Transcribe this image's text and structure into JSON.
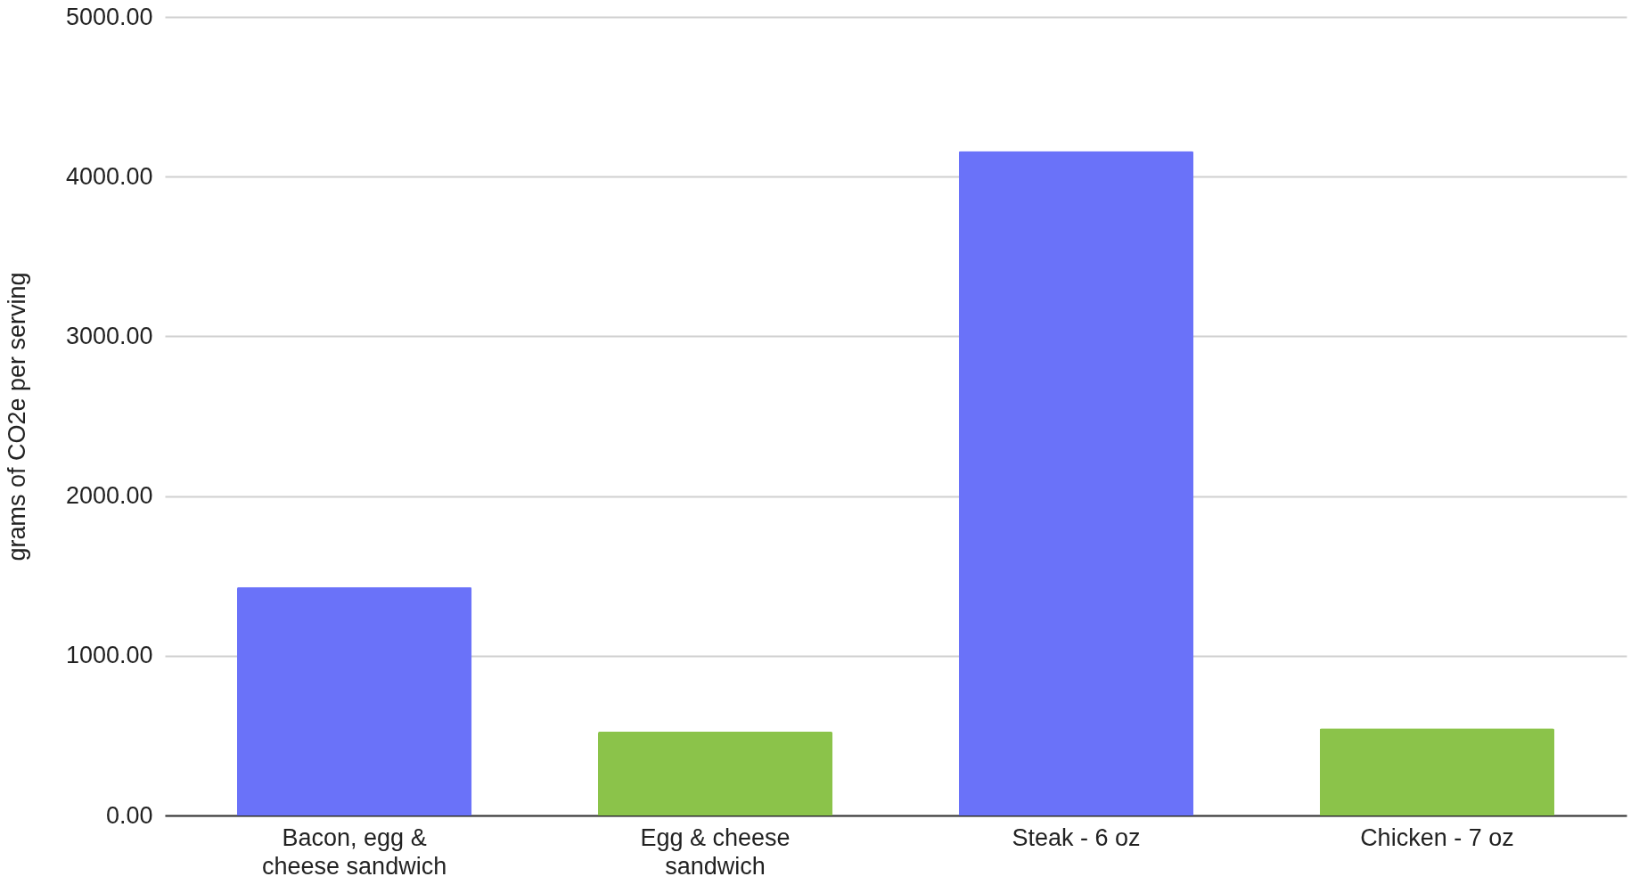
{
  "chart_data": {
    "type": "bar",
    "ylabel": "grams of CO2e per serving",
    "categories": [
      "Bacon, egg & cheese sandwich",
      "Egg & cheese sandwich",
      "Steak - 6 oz",
      "Chicken - 7 oz"
    ],
    "values": [
      1430,
      525,
      4160,
      545
    ],
    "colors": [
      "#6a72f9",
      "#8bc34a",
      "#6a72f9",
      "#8bc34a"
    ],
    "ylim": [
      0,
      5000
    ],
    "yticks": [
      {
        "value": 0,
        "label": "0.00"
      },
      {
        "value": 1000,
        "label": "1000.00"
      },
      {
        "value": 2000,
        "label": "2000.00"
      },
      {
        "value": 3000,
        "label": "3000.00"
      },
      {
        "value": 4000,
        "label": "4000.00"
      },
      {
        "value": 5000,
        "label": "5000.00"
      }
    ],
    "grid": "y"
  }
}
